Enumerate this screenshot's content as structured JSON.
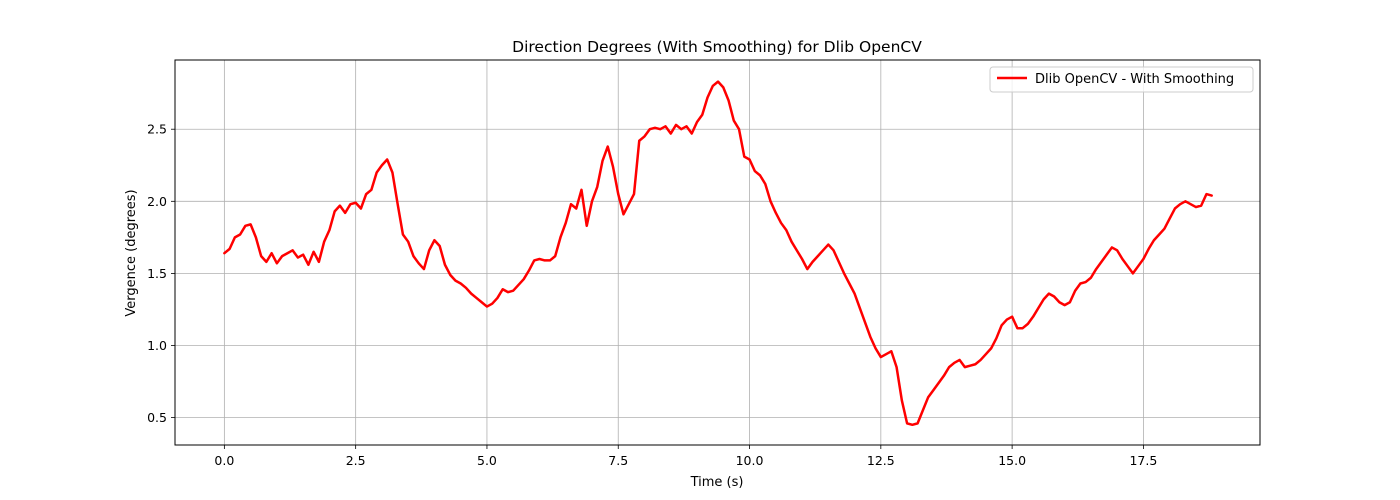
{
  "chart_data": {
    "type": "line",
    "title": "Direction Degrees (With Smoothing) for Dlib OpenCV",
    "xlabel": "Time (s)",
    "ylabel": "Vergence (degrees)",
    "xlim": [
      -0.94,
      19.72
    ],
    "ylim": [
      0.31,
      2.98
    ],
    "x_ticks": [
      0.0,
      2.5,
      5.0,
      7.5,
      10.0,
      12.5,
      15.0,
      17.5
    ],
    "x_tick_labels": [
      "0.0",
      "2.5",
      "5.0",
      "7.5",
      "10.0",
      "12.5",
      "15.0",
      "17.5"
    ],
    "y_ticks": [
      0.5,
      1.0,
      1.5,
      2.0,
      2.5
    ],
    "y_tick_labels": [
      "0.5",
      "1.0",
      "1.5",
      "2.0",
      "2.5"
    ],
    "grid": true,
    "legend_position": "top-right",
    "series": [
      {
        "name": "Dlib OpenCV - With Smoothing",
        "color": "#ff0000",
        "x": [
          0.0,
          0.1,
          0.2,
          0.3,
          0.4,
          0.5,
          0.6,
          0.7,
          0.8,
          0.9,
          1.0,
          1.1,
          1.2,
          1.3,
          1.4,
          1.5,
          1.6,
          1.7,
          1.8,
          1.9,
          2.0,
          2.1,
          2.2,
          2.3,
          2.4,
          2.5,
          2.6,
          2.7,
          2.8,
          2.9,
          3.0,
          3.1,
          3.2,
          3.3,
          3.4,
          3.5,
          3.6,
          3.7,
          3.8,
          3.9,
          4.0,
          4.1,
          4.2,
          4.3,
          4.4,
          4.5,
          4.6,
          4.7,
          4.8,
          4.9,
          5.0,
          5.1,
          5.2,
          5.3,
          5.4,
          5.5,
          5.6,
          5.7,
          5.8,
          5.9,
          6.0,
          6.1,
          6.2,
          6.3,
          6.4,
          6.5,
          6.6,
          6.7,
          6.8,
          6.9,
          7.0,
          7.1,
          7.2,
          7.3,
          7.4,
          7.5,
          7.6,
          7.7,
          7.8,
          7.9,
          8.0,
          8.1,
          8.2,
          8.3,
          8.4,
          8.5,
          8.6,
          8.7,
          8.8,
          8.9,
          9.0,
          9.1,
          9.2,
          9.3,
          9.4,
          9.5,
          9.6,
          9.7,
          9.8,
          9.9,
          10.0,
          10.1,
          10.2,
          10.3,
          10.4,
          10.5,
          10.6,
          10.7,
          10.8,
          10.9,
          11.0,
          11.1,
          11.2,
          11.3,
          11.4,
          11.5,
          11.6,
          11.7,
          11.8,
          11.9,
          12.0,
          12.1,
          12.2,
          12.3,
          12.4,
          12.5,
          12.6,
          12.7,
          12.8,
          12.9,
          13.0,
          13.1,
          13.2,
          13.3,
          13.4,
          13.5,
          13.6,
          13.7,
          13.8,
          13.9,
          14.0,
          14.1,
          14.2,
          14.3,
          14.4,
          14.5,
          14.6,
          14.7,
          14.8,
          14.9,
          15.0,
          15.1,
          15.2,
          15.3,
          15.4,
          15.5,
          15.6,
          15.7,
          15.8,
          15.9,
          16.0,
          16.1,
          16.2,
          16.3,
          16.4,
          16.5,
          16.6,
          16.7,
          16.8,
          16.9,
          17.0,
          17.1,
          17.2,
          17.3,
          17.4,
          17.5,
          17.6,
          17.7,
          17.8,
          17.9,
          18.0,
          18.1,
          18.2,
          18.3,
          18.4,
          18.5,
          18.6,
          18.7,
          18.8
        ],
        "y": [
          1.64,
          1.67,
          1.75,
          1.77,
          1.83,
          1.84,
          1.75,
          1.62,
          1.58,
          1.64,
          1.57,
          1.62,
          1.64,
          1.66,
          1.61,
          1.63,
          1.56,
          1.65,
          1.58,
          1.72,
          1.8,
          1.93,
          1.97,
          1.92,
          1.98,
          1.99,
          1.95,
          2.05,
          2.08,
          2.2,
          2.25,
          2.29,
          2.2,
          1.98,
          1.77,
          1.72,
          1.62,
          1.57,
          1.53,
          1.66,
          1.73,
          1.69,
          1.56,
          1.49,
          1.45,
          1.43,
          1.4,
          1.36,
          1.33,
          1.3,
          1.27,
          1.29,
          1.33,
          1.39,
          1.37,
          1.38,
          1.42,
          1.46,
          1.52,
          1.59,
          1.6,
          1.59,
          1.59,
          1.62,
          1.75,
          1.85,
          1.98,
          1.95,
          2.08,
          1.83,
          2.0,
          2.1,
          2.28,
          2.38,
          2.24,
          2.05,
          1.91,
          1.98,
          2.05,
          2.42,
          2.45,
          2.5,
          2.51,
          2.5,
          2.52,
          2.47,
          2.53,
          2.5,
          2.52,
          2.47,
          2.55,
          2.6,
          2.72,
          2.8,
          2.83,
          2.79,
          2.7,
          2.56,
          2.5,
          2.31,
          2.29,
          2.21,
          2.18,
          2.12,
          2.0,
          1.92,
          1.85,
          1.8,
          1.72,
          1.66,
          1.6,
          1.53,
          1.58,
          1.62,
          1.66,
          1.7,
          1.66,
          1.58,
          1.5,
          1.43,
          1.36,
          1.26,
          1.16,
          1.06,
          0.98,
          0.92,
          0.94,
          0.96,
          0.85,
          0.62,
          0.46,
          0.45,
          0.46,
          0.55,
          0.64,
          0.69,
          0.74,
          0.79,
          0.85,
          0.88,
          0.9,
          0.85,
          0.86,
          0.87,
          0.9,
          0.94,
          0.98,
          1.05,
          1.14,
          1.18,
          1.2,
          1.12,
          1.12,
          1.15,
          1.2,
          1.26,
          1.32,
          1.36,
          1.34,
          1.3,
          1.28,
          1.3,
          1.38,
          1.43,
          1.44,
          1.47,
          1.53,
          1.58,
          1.63,
          1.68,
          1.66,
          1.6,
          1.55,
          1.5,
          1.55,
          1.6,
          1.67,
          1.73,
          1.77,
          1.81,
          1.88,
          1.95,
          1.98,
          2.0,
          1.98,
          1.96,
          1.97,
          2.05,
          2.04
        ]
      }
    ]
  }
}
